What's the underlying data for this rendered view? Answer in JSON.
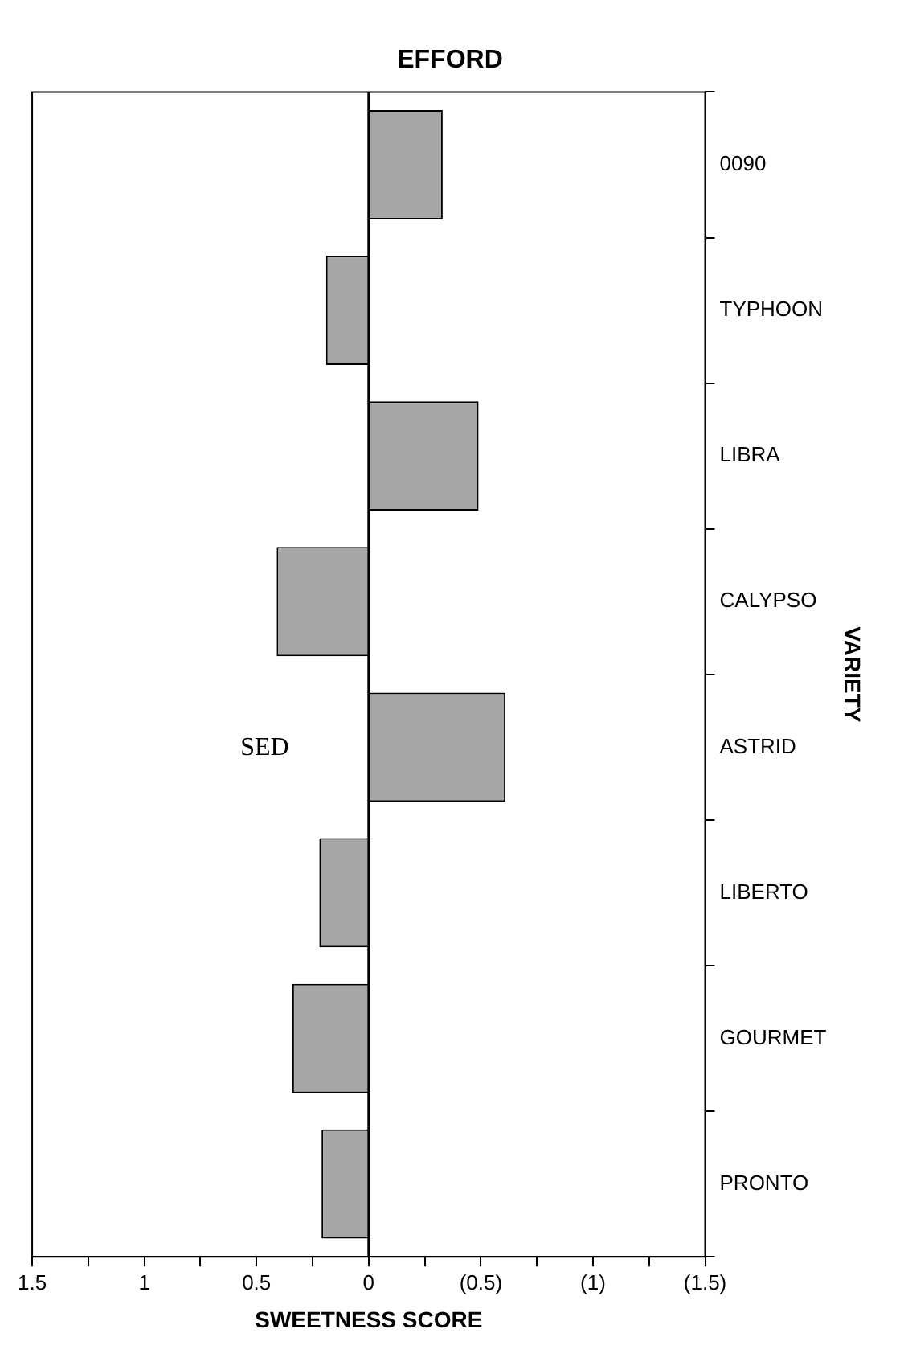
{
  "chart_data": {
    "type": "bar",
    "orientation": "horizontal",
    "title": "EFFORD",
    "xlabel": "SWEETNESS SCORE",
    "ylabel": "VARIETY",
    "categories": [
      "0090",
      "TYPHOON",
      "LIBRA",
      "CALYPSO",
      "ASTRID",
      "LIBERTO",
      "GOURMET",
      "PRONTO"
    ],
    "values": [
      -0.33,
      0.19,
      -0.49,
      0.41,
      -0.61,
      0.22,
      0.34,
      0.21
    ],
    "color": "#a6a6a6",
    "xlim": [
      1.5,
      -1.5
    ],
    "xticks": [
      {
        "value": 1.5,
        "label": "1.5"
      },
      {
        "value": 1.25,
        "label": null
      },
      {
        "value": 1,
        "label": "1"
      },
      {
        "value": 0.75,
        "label": null
      },
      {
        "value": 0.5,
        "label": "0.5"
      },
      {
        "value": 0.25,
        "label": null
      },
      {
        "value": 0,
        "label": "0"
      },
      {
        "value": -0.25,
        "label": null
      },
      {
        "value": -0.5,
        "label": "(0.5)"
      },
      {
        "value": -0.75,
        "label": null
      },
      {
        "value": -1,
        "label": "(1)"
      },
      {
        "value": -1.25,
        "label": null
      },
      {
        "value": -1.5,
        "label": "(1.5)"
      }
    ],
    "ref_lines": [
      {
        "axis": "x",
        "value": 0,
        "color": "#000000"
      }
    ],
    "annotations": [
      "SED"
    ],
    "grid": false,
    "legend": false
  }
}
